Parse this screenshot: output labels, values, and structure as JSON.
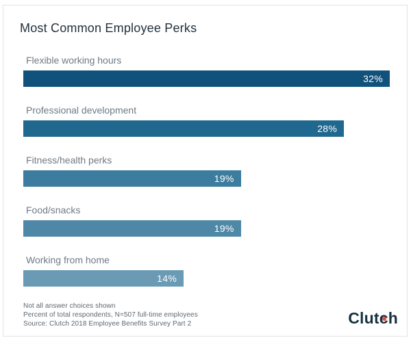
{
  "title": "Most Common Employee Perks",
  "chart_data": {
    "type": "bar",
    "orientation": "horizontal",
    "title": "Most Common Employee Perks",
    "categories": [
      "Flexible working hours",
      "Professional development",
      "Fitness/health perks",
      "Food/snacks",
      "Working from home"
    ],
    "values": [
      32,
      28,
      19,
      19,
      14
    ],
    "value_labels": [
      "32%",
      "28%",
      "19%",
      "19%",
      "14%"
    ],
    "bar_colors": [
      "#11527c",
      "#20688f",
      "#3c7c9e",
      "#4e88a6",
      "#6a9ab4"
    ],
    "xlim": [
      0,
      32
    ],
    "grid": false,
    "legend": false,
    "value_label_position": "inside-end",
    "unit": "percent"
  },
  "footer": {
    "notes": [
      "Not all answer choices shown",
      "Percent of total respondents, N=507 full-time employees",
      "Source: Clutch 2018 Employee Benefits Survey Part 2"
    ],
    "logo": {
      "text": "Clutch",
      "part_before": "Clut",
      "part_dotted": "c",
      "part_after": "h",
      "text_color": "#17313f",
      "dot_color": "#ef4a3c"
    }
  },
  "colors": {
    "frame_border": "#e3e3e3",
    "title_text": "#22313c",
    "label_text": "#6f7a83",
    "note_text": "#5d676f",
    "background": "#ffffff"
  }
}
